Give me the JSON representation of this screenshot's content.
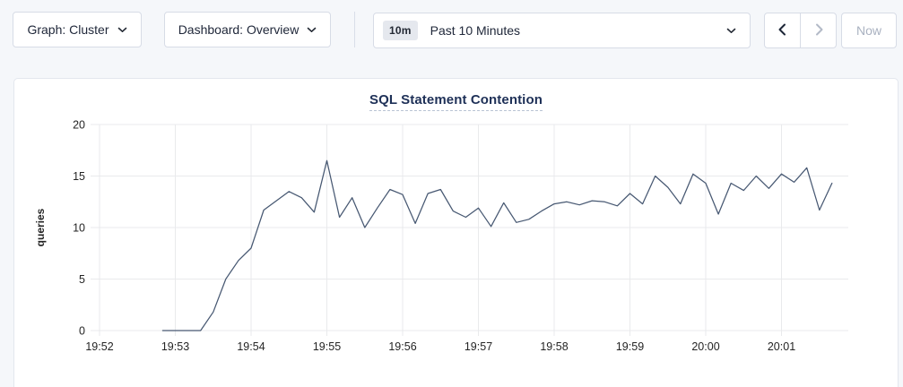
{
  "toolbar": {
    "graph_dropdown_label": "Graph: Cluster",
    "dashboard_dropdown_label": "Dashboard: Overview",
    "time_window": {
      "badge": "10m",
      "label": "Past 10 Minutes"
    },
    "now_button_label": "Now"
  },
  "chart": {
    "title": "SQL Statement Contention"
  },
  "colors": {
    "line": "#475872",
    "grid": "#e9eaec",
    "title_navy": "#1e3057",
    "disabled_text": "#a9b1c0"
  },
  "chart_data": {
    "type": "line",
    "title": "SQL Statement Contention",
    "xlabel": "",
    "ylabel": "queries",
    "ylim": [
      0,
      20
    ],
    "yticks": [
      0,
      5,
      10,
      15,
      20
    ],
    "xticks": [
      "19:52",
      "19:53",
      "19:54",
      "19:55",
      "19:56",
      "19:57",
      "19:58",
      "19:59",
      "20:00",
      "20:01"
    ],
    "grid": true,
    "legend": "none",
    "series_name": "queries",
    "x_start_label": "19:52:50",
    "x_step_seconds": 10,
    "values": [
      0,
      0,
      0,
      0,
      1.8,
      5,
      6.8,
      8,
      11.7,
      12.6,
      13.5,
      12.9,
      11.5,
      16.5,
      11,
      12.9,
      10,
      11.9,
      13.7,
      13.2,
      10.4,
      13.3,
      13.7,
      11.6,
      11,
      11.9,
      10.1,
      12.4,
      10.5,
      10.8,
      11.6,
      12.3,
      12.5,
      12.2,
      12.6,
      12.5,
      12.1,
      13.3,
      12.3,
      15,
      13.9,
      12.3,
      15.2,
      14.3,
      11.3,
      14.3,
      13.6,
      15,
      13.8,
      15.2,
      14.4,
      15.8,
      11.7,
      14.3
    ],
    "line_color": "#475872",
    "grid_color": "#e9eaec"
  }
}
